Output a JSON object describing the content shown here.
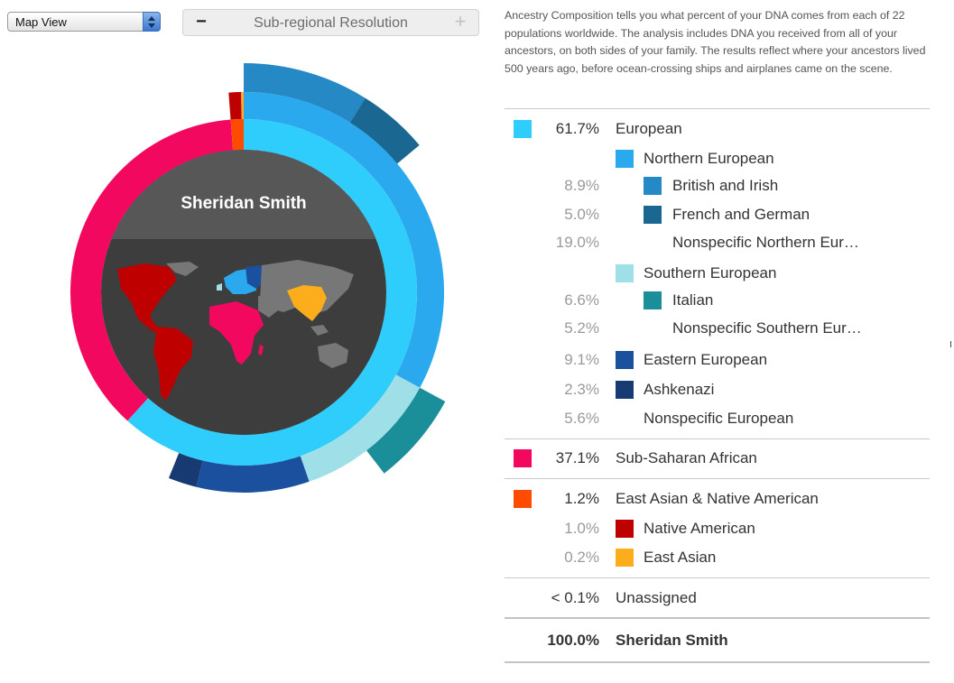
{
  "controls": {
    "view_select_value": "Map View",
    "resolution_title": "Sub-regional Resolution",
    "minus_symbol": "−",
    "plus_symbol": "+"
  },
  "description": "Ancestry Composition tells you what percent of your DNA comes from each of 22 populations worldwide. The analysis includes DNA you received from all of your ancestors, on both sides of your family. The results reflect where your ancestors lived 500 years ago, before ocean-crossing ships and airplanes came on the scene.",
  "table": {
    "rows": [
      {
        "pct": "61.7%",
        "name": "European",
        "level": 0,
        "color": "#2ecdfb"
      },
      {
        "pct": "",
        "name": "Northern European",
        "level": 1,
        "color": "#2aa9ef"
      },
      {
        "pct": "8.9%",
        "name": "British and Irish",
        "level": 2,
        "color": "#2489c5"
      },
      {
        "pct": "5.0%",
        "name": "French and German",
        "level": 2,
        "color": "#1a6891"
      },
      {
        "pct": "19.0%",
        "name": "Nonspecific Northern Eur…",
        "level": 2,
        "color": ""
      },
      {
        "pct": "",
        "name": "Southern European",
        "level": 1,
        "color": "#9fdfe8"
      },
      {
        "pct": "6.6%",
        "name": "Italian",
        "level": 2,
        "color": "#1a8f9a"
      },
      {
        "pct": "5.2%",
        "name": "Nonspecific Southern Eur…",
        "level": 2,
        "color": ""
      },
      {
        "pct": "9.1%",
        "name": "Eastern European",
        "level": 1,
        "color": "#1a509e"
      },
      {
        "pct": "2.3%",
        "name": "Ashkenazi",
        "level": 1,
        "color": "#173a72"
      },
      {
        "pct": "5.6%",
        "name": "Nonspecific European",
        "level": 1,
        "color": ""
      },
      {
        "pct": "37.1%",
        "name": "Sub-Saharan African",
        "level": 0,
        "color": "#f2095f"
      },
      {
        "pct": "1.2%",
        "name": "East Asian & Native American",
        "level": 0,
        "color": "#fd4c02"
      },
      {
        "pct": "1.0%",
        "name": "Native American",
        "level": 1,
        "color": "#be0000"
      },
      {
        "pct": "0.2%",
        "name": "East Asian",
        "level": 1,
        "color": "#fbad1b"
      },
      {
        "pct": "< 0.1%",
        "name": "Unassigned",
        "level": 0,
        "color": ""
      }
    ],
    "total": {
      "pct": "100.0%",
      "name": "Sheridan Smith"
    }
  },
  "chart_data": {
    "type": "sunburst",
    "title": "Sheridan Smith",
    "rings": [
      {
        "ring": "inner",
        "segments": [
          {
            "name": "European",
            "value": 61.7,
            "color": "#2ecdfb"
          },
          {
            "name": "Sub-Saharan African",
            "value": 37.1,
            "color": "#f2095f"
          },
          {
            "name": "East Asian & Native American",
            "value": 1.2,
            "color": "#fd4c02"
          }
        ]
      },
      {
        "ring": "middle",
        "segments": [
          {
            "name": "Northern European",
            "value": 32.9,
            "start": 0,
            "color": "#2aa9ef"
          },
          {
            "name": "Southern European",
            "value": 11.8,
            "start": 32.9,
            "color": "#9fdfe8"
          },
          {
            "name": "Eastern European",
            "value": 9.1,
            "start": 44.7,
            "color": "#1a509e"
          },
          {
            "name": "Ashkenazi",
            "value": 2.3,
            "start": 53.8,
            "color": "#173a72"
          },
          {
            "name": "Native American",
            "value": 1.0,
            "start": 98.8,
            "color": "#be0000"
          },
          {
            "name": "East Asian",
            "value": 0.2,
            "start": 99.8,
            "color": "#fbad1b"
          }
        ]
      },
      {
        "ring": "outer",
        "segments": [
          {
            "name": "British and Irish",
            "value": 8.9,
            "start": 0,
            "color": "#2489c5"
          },
          {
            "name": "French and German",
            "value": 5.0,
            "start": 8.9,
            "color": "#1a6891"
          },
          {
            "name": "Italian",
            "value": 6.6,
            "start": 32.9,
            "color": "#1a8f9a"
          }
        ]
      }
    ],
    "map_regions": [
      {
        "region": "Americas",
        "color": "#be0000"
      },
      {
        "region": "Africa",
        "color": "#f2095f"
      },
      {
        "region": "Europe",
        "color": "#2aa9ef"
      },
      {
        "region": "East Asia",
        "color": "#fbad1b"
      }
    ]
  }
}
